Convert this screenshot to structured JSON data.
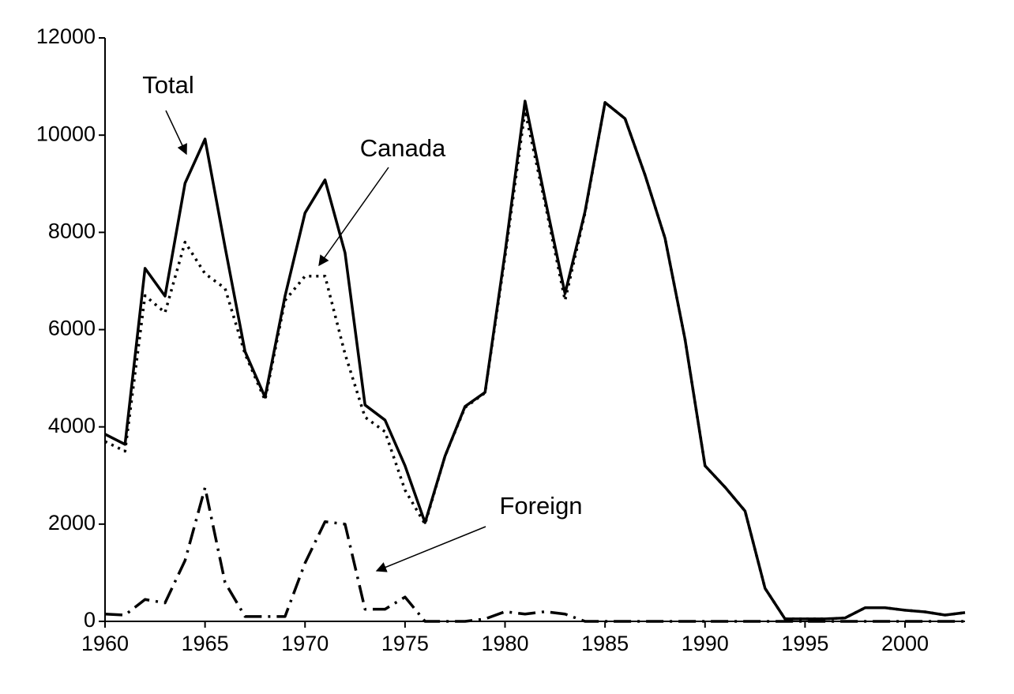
{
  "chart_data": {
    "type": "line",
    "x": [
      1960,
      1961,
      1962,
      1963,
      1964,
      1965,
      1966,
      1967,
      1968,
      1969,
      1970,
      1971,
      1972,
      1973,
      1974,
      1975,
      1976,
      1977,
      1978,
      1979,
      1980,
      1981,
      1982,
      1983,
      1984,
      1985,
      1986,
      1987,
      1988,
      1989,
      1990,
      1991,
      1992,
      1993,
      1994,
      1995,
      1996,
      1997,
      1998,
      1999,
      2000,
      2001,
      2002,
      2003
    ],
    "series": [
      {
        "name": "Total",
        "color": "#000000",
        "dash": "solid",
        "values": [
          3850,
          3640,
          7260,
          6690,
          9010,
          9920,
          7700,
          5550,
          4610,
          6690,
          8400,
          9080,
          7580,
          4450,
          4140,
          3200,
          2030,
          3400,
          4420,
          4710,
          7580,
          10700,
          8690,
          6740,
          8430,
          10670,
          10340,
          9180,
          7880,
          5800,
          3200,
          2760,
          2270,
          680,
          50,
          50,
          50,
          70,
          280,
          280,
          230,
          195,
          130,
          180
        ]
      },
      {
        "name": "Canada",
        "color": "#000000",
        "dash": "dotted",
        "values": [
          3700,
          3500,
          6700,
          6350,
          7800,
          7150,
          6850,
          5500,
          4550,
          6600,
          7100,
          7100,
          5500,
          4200,
          3900,
          2700,
          2000,
          3400,
          4400,
          4700,
          7500,
          10500,
          8600,
          6600,
          8400,
          10670,
          10340,
          9180,
          7880,
          5800,
          3200,
          2760,
          2270,
          680,
          50,
          50,
          50,
          70,
          280,
          280,
          230,
          195,
          130,
          180
        ]
      },
      {
        "name": "Foreign",
        "color": "#000000",
        "dash": "dashdot",
        "values": [
          150,
          130,
          450,
          380,
          1250,
          2750,
          800,
          100,
          100,
          100,
          1200,
          2050,
          2000,
          250,
          250,
          500,
          0,
          0,
          0,
          50,
          200,
          150,
          200,
          150,
          0,
          0,
          0,
          0,
          0,
          0,
          0,
          0,
          0,
          0,
          0,
          0,
          0,
          0,
          0,
          0,
          0,
          0,
          0,
          0
        ]
      }
    ],
    "xlim": [
      1960,
      2003
    ],
    "xticks": [
      1960,
      1965,
      1970,
      1975,
      1980,
      1985,
      1990,
      1995,
      2000
    ],
    "ylim": [
      0,
      12000
    ],
    "yticks": [
      0,
      2000,
      4000,
      6000,
      8000,
      10000,
      12000
    ],
    "grid": false
  }
}
